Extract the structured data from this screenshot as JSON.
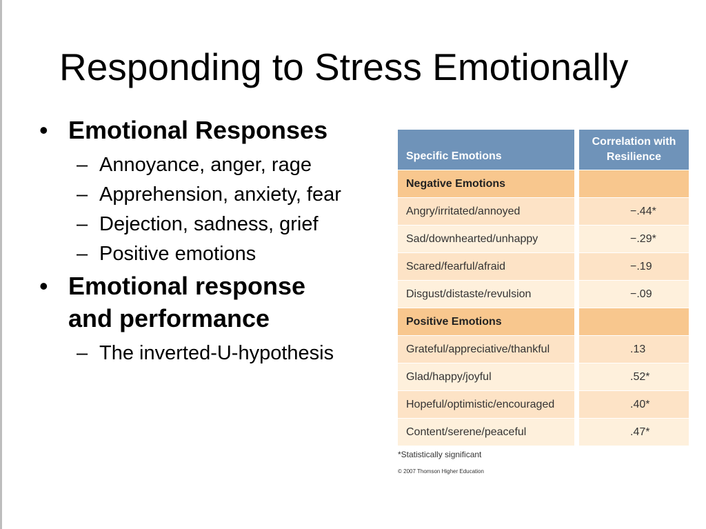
{
  "slide": {
    "title": "Responding to Stress Emotionally",
    "bullets": [
      {
        "text": "Emotional Responses",
        "sub": [
          "Annoyance, anger, rage",
          "Apprehension, anxiety, fear",
          "Dejection, sadness, grief",
          "Positive emotions"
        ]
      },
      {
        "text": "Emotional response and performance",
        "sub": [
          "The inverted-U-hypothesis"
        ]
      }
    ]
  },
  "table": {
    "header": {
      "col1": "Specific Emotions",
      "col2": "Correlation with Resilience"
    },
    "rows": [
      {
        "kind": "section",
        "emotion": "Negative Emotions",
        "value": ""
      },
      {
        "kind": "odd",
        "emotion": "Angry/irritated/annoyed",
        "value": "−.44*"
      },
      {
        "kind": "even",
        "emotion": "Sad/downhearted/unhappy",
        "value": "−.29*"
      },
      {
        "kind": "odd",
        "emotion": "Scared/fearful/afraid",
        "value": "−.19"
      },
      {
        "kind": "even",
        "emotion": "Disgust/distaste/revulsion",
        "value": "−.09"
      },
      {
        "kind": "section",
        "emotion": "Positive Emotions",
        "value": ""
      },
      {
        "kind": "odd",
        "emotion": "Grateful/appreciative/thankful",
        "value": ".13"
      },
      {
        "kind": "even",
        "emotion": "Glad/happy/joyful",
        "value": ".52*"
      },
      {
        "kind": "odd",
        "emotion": "Hopeful/optimistic/encouraged",
        "value": ".40*"
      },
      {
        "kind": "even",
        "emotion": "Content/serene/peaceful",
        "value": ".47*"
      }
    ],
    "footnote": "*Statistically significant",
    "copyright": "© 2007 Thomson Higher Education"
  },
  "colors": {
    "header_blue": "#6f93b9",
    "section_orange": "#f8c78e",
    "row_light": "#fde3c6",
    "row_lighter": "#fef0dc"
  }
}
